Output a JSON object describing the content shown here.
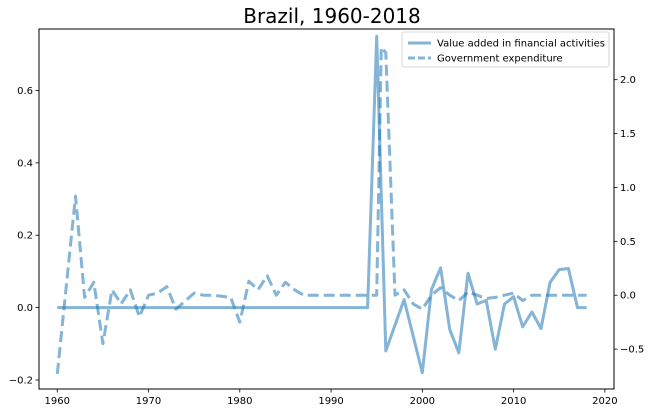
{
  "chart_data": {
    "type": "line",
    "title": "Brazil, 1960-2018",
    "xlabel": "",
    "ylabel_left": "",
    "ylabel_right": "",
    "xlim": [
      1958,
      2021
    ],
    "ylim_left": [
      -0.225,
      0.77
    ],
    "ylim_right": [
      -0.87,
      2.47
    ],
    "x_ticks": [
      1960,
      1970,
      1980,
      1990,
      2000,
      2010,
      2020
    ],
    "y_ticks_left": [
      -0.2,
      0.0,
      0.2,
      0.4,
      0.6
    ],
    "y_ticks_right": [
      -0.5,
      0.0,
      0.5,
      1.0,
      1.5,
      2.0
    ],
    "y_tick_labels_left": [
      "−0.2",
      "0.0",
      "0.2",
      "0.4",
      "0.6"
    ],
    "y_tick_labels_right": [
      "−0.5",
      "0.0",
      "0.5",
      "1.0",
      "1.5",
      "2.0"
    ],
    "grid": false,
    "legend_position": "top-right",
    "series": [
      {
        "name": "Value added in financial activities",
        "axis": "left",
        "style": "solid",
        "color": "#1f77b4",
        "x": [
          1960,
          1994,
          1995,
          1996,
          1998,
          2000,
          2001,
          2002,
          2003,
          2004,
          2005,
          2006,
          2007,
          2008,
          2009,
          2010,
          2011,
          2012,
          2013,
          2014,
          2015,
          2016,
          2017,
          2018
        ],
        "values": [
          0.0,
          0.0,
          0.75,
          -0.12,
          0.022,
          -0.18,
          0.05,
          0.11,
          -0.06,
          -0.125,
          0.095,
          0.01,
          0.02,
          -0.115,
          0.01,
          0.03,
          -0.053,
          -0.012,
          -0.058,
          0.07,
          0.105,
          0.108,
          0.0,
          0.0
        ]
      },
      {
        "name": "Government expenditure",
        "axis": "right",
        "style": "dashed",
        "color": "#1f77b4",
        "x": [
          1960,
          1962,
          1963,
          1964,
          1965,
          1966,
          1967,
          1968,
          1969,
          1970,
          1971,
          1972,
          1973,
          1975,
          1976,
          1977,
          1978,
          1979,
          1980,
          1981,
          1982,
          1983,
          1984,
          1985,
          1986,
          1987,
          1994,
          1995,
          1995.5,
          1996,
          1997,
          1998,
          1999,
          2000,
          2001,
          2002,
          2003,
          2004,
          2005,
          2006,
          2007,
          2008,
          2009,
          2010,
          2011,
          2012,
          2017,
          2018
        ],
        "values": [
          -0.73,
          0.92,
          -0.02,
          0.12,
          -0.45,
          0.05,
          -0.08,
          0.05,
          -0.2,
          0.0,
          0.02,
          0.08,
          -0.13,
          0.02,
          0.0,
          0.0,
          -0.01,
          -0.02,
          -0.25,
          0.13,
          0.05,
          0.18,
          0.0,
          0.12,
          0.05,
          0.0,
          0.0,
          0.0,
          2.3,
          2.25,
          0.0,
          0.05,
          -0.08,
          -0.13,
          0.0,
          0.07,
          0.0,
          -0.05,
          0.03,
          0.0,
          -0.03,
          -0.02,
          0.0,
          0.02,
          -0.05,
          0.0,
          0.0,
          0.0
        ]
      }
    ]
  }
}
